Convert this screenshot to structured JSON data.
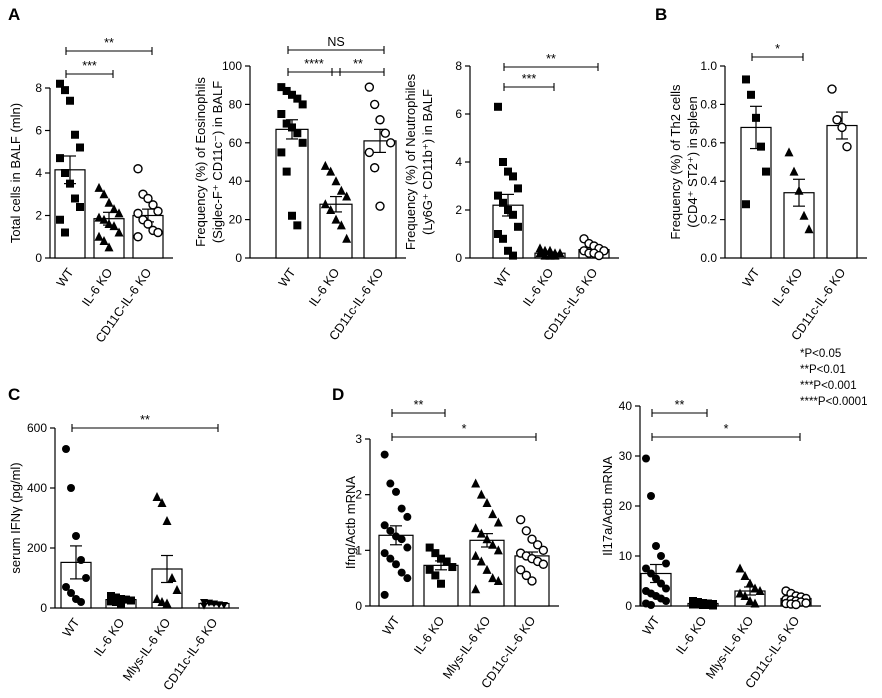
{
  "legend": [
    "*P<0.05",
    "**P<0.01",
    "***P<0.001",
    "****P<0.0001"
  ],
  "chart_data": [
    {
      "panel": "A",
      "type": "bar",
      "title": "",
      "ylabel": [
        "Total cells in BALF (mln)"
      ],
      "categories": [
        "WT",
        "IL-6 KO",
        "CD11C-IL-6 KO"
      ],
      "marker_styles": [
        "filled-square",
        "filled-triangle",
        "open-circle"
      ],
      "ylim": [
        0,
        8
      ],
      "yticks": [
        "0",
        "2",
        "4",
        "6",
        "8"
      ],
      "means": [
        4.15,
        1.85,
        2.0
      ],
      "sems": [
        0.65,
        0.3,
        0.3
      ],
      "points": [
        [
          8.2,
          7.9,
          7.4,
          5.8,
          5.2,
          4.7,
          4.0,
          3.5,
          2.8,
          2.4,
          1.8,
          1.2
        ],
        [
          3.3,
          3.0,
          2.6,
          2.3,
          2.1,
          1.9,
          1.8,
          1.6,
          1.5,
          1.2,
          1.0,
          0.8,
          0.5
        ],
        [
          4.2,
          3.0,
          2.8,
          2.5,
          2.2,
          2.1,
          1.8,
          1.6,
          1.3,
          1.2,
          1.0
        ]
      ],
      "comparisons": [
        {
          "from": 0,
          "to": 1,
          "label": "***"
        },
        {
          "from": 0,
          "to": 2,
          "label": "**"
        }
      ]
    },
    {
      "panel": "A2",
      "type": "bar",
      "title": "",
      "ylabel": [
        "Frequency (%) of Eosinophils",
        "(Siglec-F⁺ CD11c⁻) in BALF"
      ],
      "categories": [
        "WT",
        "IL-6 KO",
        "CD11c-IL-6 KO"
      ],
      "marker_styles": [
        "filled-square",
        "filled-triangle",
        "open-circle"
      ],
      "ylim": [
        0,
        100
      ],
      "yticks": [
        "0",
        "20",
        "40",
        "60",
        "80",
        "100"
      ],
      "means": [
        67,
        28,
        61
      ],
      "sems": [
        5,
        4,
        6
      ],
      "points": [
        [
          89,
          87,
          85,
          83,
          80,
          75,
          70,
          68,
          65,
          60,
          55,
          45,
          22,
          17
        ],
        [
          48,
          45,
          40,
          35,
          32,
          28,
          25,
          20,
          17,
          10
        ],
        [
          89,
          80,
          72,
          65,
          60,
          55,
          47,
          27
        ]
      ],
      "comparisons": [
        {
          "from": 0,
          "to": 1,
          "label": "****"
        },
        {
          "from": 1,
          "to": 2,
          "label": "**"
        },
        {
          "from": 0,
          "to": 2,
          "label": "NS"
        }
      ]
    },
    {
      "panel": "A3",
      "type": "bar",
      "title": "",
      "ylabel": [
        "Frequency (%) of Neutrophiles",
        "(Ly6G⁺ CD11b⁺) in BALF"
      ],
      "categories": [
        "WT",
        "IL-6 KO",
        "CD11c-IL-6 KO"
      ],
      "marker_styles": [
        "filled-square",
        "filled-triangle",
        "open-circle"
      ],
      "ylim": [
        0,
        8
      ],
      "yticks": [
        "0",
        "2",
        "4",
        "6",
        "8"
      ],
      "means": [
        2.2,
        0.2,
        0.35
      ],
      "sems": [
        0.45,
        0.05,
        0.08
      ],
      "points": [
        [
          6.3,
          4.0,
          3.6,
          3.4,
          2.9,
          2.6,
          2.3,
          2.0,
          1.8,
          1.3,
          1.0,
          0.8,
          0.3,
          0.1
        ],
        [
          0.4,
          0.3,
          0.3,
          0.2,
          0.2,
          0.2,
          0.1,
          0.1,
          0.1
        ],
        [
          0.8,
          0.6,
          0.5,
          0.4,
          0.3,
          0.3,
          0.2,
          0.2,
          0.1
        ]
      ],
      "comparisons": [
        {
          "from": 0,
          "to": 1,
          "label": "***"
        },
        {
          "from": 0,
          "to": 2,
          "label": "**"
        }
      ]
    },
    {
      "panel": "B",
      "type": "bar",
      "title": "",
      "ylabel": [
        "Frequency (%) of Th2 cells",
        "(CD4⁺ ST2⁺) in spleen"
      ],
      "categories": [
        "WT",
        "IL-6 KO",
        "CD11c-IL-6 KO"
      ],
      "marker_styles": [
        "filled-square",
        "filled-triangle",
        "open-circle"
      ],
      "ylim": [
        0,
        1.0
      ],
      "yticks": [
        "0.0",
        "0.2",
        "0.4",
        "0.6",
        "0.8",
        "1.0"
      ],
      "means": [
        0.68,
        0.34,
        0.69
      ],
      "sems": [
        0.11,
        0.07,
        0.07
      ],
      "points": [
        [
          0.93,
          0.85,
          0.73,
          0.58,
          0.45,
          0.28
        ],
        [
          0.55,
          0.45,
          0.35,
          0.22,
          0.15
        ],
        [
          0.88,
          0.72,
          0.68,
          0.58
        ]
      ],
      "comparisons": [
        {
          "from": 0,
          "to": 1,
          "label": "*"
        }
      ]
    },
    {
      "panel": "C",
      "type": "bar",
      "title": "",
      "ylabel": [
        "serum IFNγ (pg/ml)"
      ],
      "categories": [
        "WT",
        "IL-6 KO",
        "Mlys-IL-6 KO",
        "CD11c-IL-6 KO"
      ],
      "marker_styles": [
        "filled-circle",
        "filled-square",
        "filled-triangle",
        "filled-triangle-down"
      ],
      "ylim": [
        0,
        600
      ],
      "yticks": [
        "0",
        "200",
        "400",
        "600"
      ],
      "means": [
        152,
        28,
        130,
        15
      ],
      "sems": [
        55,
        5,
        45,
        4
      ],
      "points": [
        [
          530,
          400,
          240,
          160,
          100,
          70,
          50,
          30,
          20
        ],
        [
          40,
          35,
          30,
          28,
          25,
          22,
          20,
          15
        ],
        [
          370,
          350,
          290,
          100,
          60,
          30,
          20,
          15
        ],
        [
          20,
          18,
          15,
          12,
          10,
          8
        ]
      ],
      "comparisons": [
        {
          "from": 0,
          "to": 3,
          "label": "**"
        }
      ]
    },
    {
      "panel": "D",
      "type": "bar",
      "title": "",
      "ylabel": [
        "Ifng/Actb mRNA"
      ],
      "categories": [
        "WT",
        "IL-6 KO",
        "Mlys-IL-6 KO",
        "CD11c-IL-6 KO"
      ],
      "marker_styles": [
        "filled-circle",
        "filled-square",
        "filled-triangle",
        "open-circle"
      ],
      "ylim": [
        0,
        3
      ],
      "yticks": [
        "0",
        "1",
        "2",
        "3"
      ],
      "means": [
        1.27,
        0.73,
        1.18,
        0.9
      ],
      "sems": [
        0.17,
        0.08,
        0.12,
        0.07
      ],
      "points": [
        [
          2.72,
          2.2,
          2.05,
          1.75,
          1.6,
          1.45,
          1.35,
          1.25,
          1.2,
          1.05,
          0.95,
          0.85,
          0.75,
          0.6,
          0.5,
          0.2
        ],
        [
          1.05,
          0.95,
          0.85,
          0.8,
          0.7,
          0.65,
          0.55,
          0.4
        ],
        [
          2.2,
          2.0,
          1.85,
          1.65,
          1.5,
          1.4,
          1.3,
          1.2,
          1.1,
          1.0,
          0.9,
          0.8,
          0.65,
          0.5,
          0.45,
          0.3
        ],
        [
          1.55,
          1.35,
          1.2,
          1.1,
          1.0,
          0.95,
          0.9,
          0.85,
          0.8,
          0.75,
          0.65,
          0.55,
          0.45
        ]
      ],
      "comparisons": [
        {
          "from": 0,
          "to": 1,
          "label": "**"
        },
        {
          "from": 0,
          "to": 3,
          "label": "*"
        }
      ]
    },
    {
      "panel": "D2",
      "type": "bar",
      "title": "",
      "ylabel": [
        "Il17a/Actb mRNA"
      ],
      "categories": [
        "WT",
        "IL-6 KO",
        "Mlys-IL-6 KO",
        "CD11c-IL-6 KO"
      ],
      "marker_styles": [
        "filled-circle",
        "filled-square",
        "filled-triangle",
        "open-circle"
      ],
      "ylim": [
        0,
        40
      ],
      "yticks": [
        "0",
        "10",
        "20",
        "30",
        "40"
      ],
      "means": [
        6.5,
        0.5,
        3.0,
        1.5
      ],
      "sems": [
        1.8,
        0.1,
        0.8,
        0.3
      ],
      "points": [
        [
          29.5,
          22,
          12,
          10,
          8.5,
          7.5,
          6.5,
          5.5,
          4.5,
          3.5,
          3,
          2.5,
          2,
          1.5,
          1,
          0.5,
          0.2
        ],
        [
          1.0,
          0.8,
          0.6,
          0.5,
          0.4,
          0.3,
          0.3,
          0.2,
          0.2,
          0.1
        ],
        [
          7.5,
          6.0,
          4.5,
          3.5,
          3.0,
          2.5,
          2.0,
          1.0,
          0.5
        ],
        [
          3.0,
          2.5,
          2.0,
          1.8,
          1.5,
          1.3,
          1.2,
          1.0,
          0.8,
          0.6,
          0.5,
          0.4,
          0.3
        ]
      ],
      "comparisons": [
        {
          "from": 0,
          "to": 1,
          "label": "**"
        },
        {
          "from": 0,
          "to": 3,
          "label": "*"
        }
      ]
    }
  ]
}
